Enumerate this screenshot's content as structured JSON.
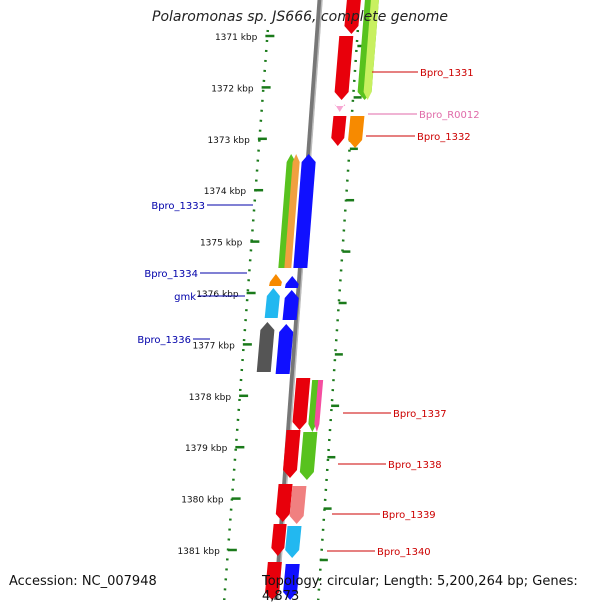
{
  "title": "Polaromonas sp. JS666, complete genome",
  "footer": {
    "accession": "Accession: NC_007948",
    "topology": "Topology: circular; Length: 5,200,264 bp; Genes: 4,873"
  },
  "colors": {
    "backbone": "#888888",
    "ruler": "#1a7a1a",
    "forward_label": "#cc0000",
    "reverse_label": "#0000aa",
    "rna_label": "#e06aa8"
  },
  "ticks": [
    {
      "label": "1371 kbp"
    },
    {
      "label": "1372 kbp"
    },
    {
      "label": "1373 kbp"
    },
    {
      "label": "1374 kbp"
    },
    {
      "label": "1375 kbp"
    },
    {
      "label": "1376 kbp"
    },
    {
      "label": "1377 kbp"
    },
    {
      "label": "1378 kbp"
    },
    {
      "label": "1379 kbp"
    },
    {
      "label": "1380 kbp"
    },
    {
      "label": "1381 kbp"
    }
  ],
  "gene_labels": [
    {
      "text": "Bpro_1331",
      "strand": "forward"
    },
    {
      "text": "Bpro_R0012",
      "strand": "rna"
    },
    {
      "text": "Bpro_1332",
      "strand": "forward"
    },
    {
      "text": "Bpro_1333",
      "strand": "reverse"
    },
    {
      "text": "Bpro_1334",
      "strand": "reverse"
    },
    {
      "text": "gmk",
      "strand": "reverse"
    },
    {
      "text": "Bpro_1336",
      "strand": "reverse"
    },
    {
      "text": "Bpro_1337",
      "strand": "forward"
    },
    {
      "text": "Bpro_1338",
      "strand": "forward"
    },
    {
      "text": "Bpro_1339",
      "strand": "forward"
    },
    {
      "text": "Bpro_1340",
      "strand": "forward"
    }
  ]
}
